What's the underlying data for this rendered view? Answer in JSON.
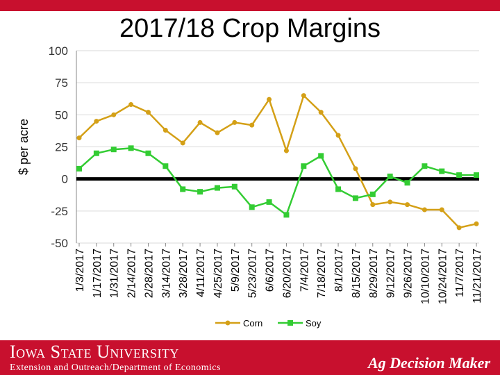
{
  "chart_data": {
    "type": "line",
    "title": "2017/18 Crop Margins",
    "ylabel": "$ per acre",
    "xlabel": "",
    "ylim": [
      -50,
      100
    ],
    "yticks": [
      100,
      75,
      50,
      25,
      0,
      -25,
      -50
    ],
    "x": [
      "1/3/2017",
      "1/17/2017",
      "1/31/2017",
      "2/14/2017",
      "2/28/2017",
      "3/14/2017",
      "3/28/2017",
      "4/11/2017",
      "4/25/2017",
      "5/9/2017",
      "5/23/2017",
      "6/6/2017",
      "6/20/2017",
      "7/4/2017",
      "7/18/2017",
      "8/1/2017",
      "8/15/2017",
      "8/29/2017",
      "9/12/2017",
      "9/26/2017",
      "10/10/2017",
      "10/24/2017",
      "11/7/2017",
      "11/21/2017"
    ],
    "legend_position": "bottom",
    "zero_line": true,
    "grid": true,
    "series": [
      {
        "name": "Corn",
        "color": "#d4a017",
        "values": [
          32,
          45,
          50,
          58,
          52,
          38,
          28,
          44,
          36,
          44,
          42,
          62,
          22,
          65,
          52,
          34,
          8,
          -20,
          -18,
          -20,
          -24,
          -24,
          -38,
          -35
        ]
      },
      {
        "name": "Soy",
        "color": "#33cc33",
        "values": [
          8,
          20,
          23,
          24,
          20,
          10,
          -8,
          -10,
          -7,
          -6,
          -22,
          -18,
          -28,
          10,
          18,
          -8,
          -15,
          -12,
          2,
          -3,
          10,
          6,
          3,
          3
        ]
      }
    ]
  },
  "footer": {
    "university": "Iowa State University",
    "department": "Extension and Outreach/Department of Economics",
    "brand": "Ag Decision Maker"
  }
}
